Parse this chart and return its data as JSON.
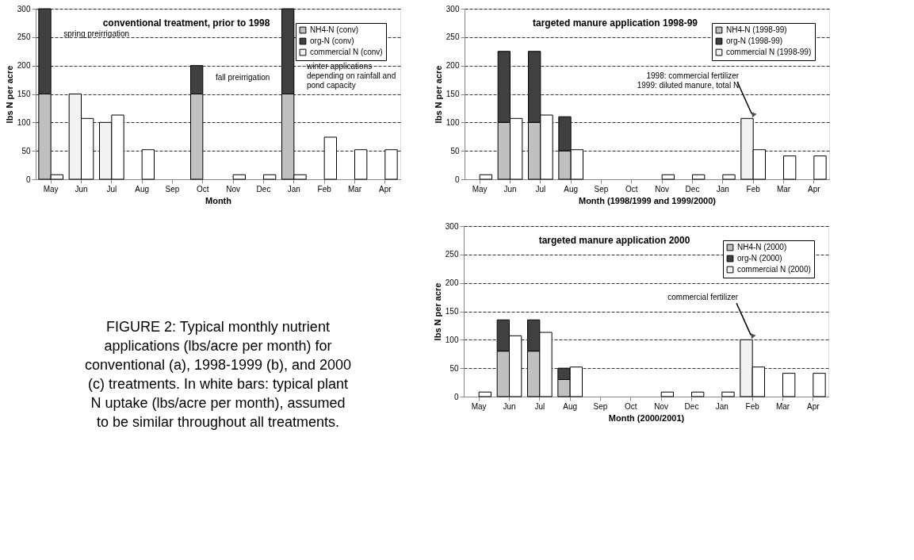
{
  "chart_data": [
    {
      "type": "bar",
      "title": "conventional treatment, prior to 1998",
      "xlabel": "Month",
      "ylabel": "lbs N per acre",
      "categories": [
        "May",
        "Jun",
        "Jul",
        "Aug",
        "Sep",
        "Oct",
        "Nov",
        "Dec",
        "Jan",
        "Feb",
        "Mar",
        "Apr"
      ],
      "ylim": [
        0,
        300
      ],
      "yticks": [
        0,
        50,
        100,
        150,
        200,
        250,
        300
      ],
      "grid": "y",
      "legend": "top right",
      "series": [
        {
          "name": "NH4-N (conv)",
          "color": "#c0c0c0",
          "values": [
            150,
            null,
            null,
            null,
            null,
            150,
            null,
            null,
            150,
            null,
            null,
            null
          ]
        },
        {
          "name": "org-N (conv)",
          "color": "#404040",
          "values": [
            150,
            null,
            null,
            null,
            null,
            50,
            null,
            null,
            150,
            null,
            null,
            null
          ],
          "base": [
            150,
            null,
            null,
            null,
            null,
            150,
            null,
            null,
            150,
            null,
            null,
            null
          ]
        },
        {
          "name": "commercial N (conv)",
          "color": "#f2f2f2",
          "values": [
            null,
            150,
            100,
            null,
            null,
            null,
            null,
            null,
            null,
            null,
            null,
            null
          ]
        },
        {
          "color": "#ffffff",
          "values": [
            8,
            107,
            113,
            52,
            null,
            null,
            8,
            8,
            8,
            74,
            52,
            52
          ]
        }
      ],
      "annotations": [
        {
          "text": "spring preirrigation",
          "x": "May",
          "y": 262
        },
        {
          "text": "fall preirrigation",
          "x": "Oct",
          "y": 185
        },
        {
          "text": "winter applications\ndepending on rainfall and\npond capacity",
          "x": "Jan",
          "y": 205
        }
      ]
    },
    {
      "type": "bar",
      "title": "targeted manure application 1998-99",
      "xlabel": "Month (1998/1999 and 1999/2000)",
      "ylabel": "lbs N per acre",
      "categories": [
        "May",
        "Jun",
        "Jul",
        "Aug",
        "Sep",
        "Oct",
        "Nov",
        "Dec",
        "Jan",
        "Feb",
        "Mar",
        "Apr"
      ],
      "ylim": [
        0,
        300
      ],
      "yticks": [
        0,
        50,
        100,
        150,
        200,
        250,
        300
      ],
      "grid": "y",
      "legend": "top right",
      "series": [
        {
          "name": "NH4-N (1998-99)",
          "color": "#c0c0c0",
          "values": [
            null,
            100,
            100,
            50,
            null,
            null,
            null,
            null,
            null,
            null,
            null,
            null
          ]
        },
        {
          "name": "org-N (1998-99)",
          "color": "#404040",
          "values": [
            null,
            125,
            125,
            60,
            null,
            null,
            null,
            null,
            null,
            null,
            null,
            null
          ],
          "base": [
            null,
            100,
            100,
            50,
            null,
            null,
            null,
            null,
            null,
            null,
            null,
            null
          ]
        },
        {
          "name": "commercial N (1998-99)",
          "color": "#f2f2f2",
          "values": [
            null,
            null,
            null,
            null,
            null,
            null,
            null,
            null,
            null,
            107,
            null,
            null
          ]
        },
        {
          "color": "#ffffff",
          "values": [
            8,
            107,
            113,
            52,
            null,
            null,
            8,
            8,
            8,
            52,
            41,
            41
          ]
        }
      ],
      "annotations": [
        {
          "text": "1998: commercial fertilizer\n1999: diluted manure, total N",
          "x": "Feb",
          "y": 107
        }
      ]
    },
    {
      "type": "other",
      "annotations": [
        "FIGURE 2:  Typical monthly nutrient\napplications (lbs/acre per month) for\nconventional (a), 1998-1999 (b), and 2000\n(c) treatments. In white bars: typical plant\nN uptake (lbs/acre per month), assumed\nto be similar throughout all treatments."
      ]
    },
    {
      "type": "bar",
      "title": "targeted manure application 2000",
      "xlabel": "Month (2000/2001)",
      "ylabel": "lbs N per acre",
      "categories": [
        "May",
        "Jun",
        "Jul",
        "Aug",
        "Sep",
        "Oct",
        "Nov",
        "Dec",
        "Jan",
        "Feb",
        "Mar",
        "Apr"
      ],
      "ylim": [
        0,
        300
      ],
      "yticks": [
        0,
        50,
        100,
        150,
        200,
        250,
        300
      ],
      "grid": "y",
      "legend": "top right",
      "series": [
        {
          "name": "NH4-N (2000)",
          "color": "#c0c0c0",
          "values": [
            null,
            80,
            80,
            30,
            null,
            null,
            null,
            null,
            null,
            null,
            null,
            null
          ]
        },
        {
          "name": "org-N (2000)",
          "color": "#404040",
          "values": [
            null,
            55,
            55,
            20,
            null,
            null,
            null,
            null,
            null,
            null,
            null,
            null
          ],
          "base": [
            null,
            80,
            80,
            30,
            null,
            null,
            null,
            null,
            null,
            null,
            null,
            null
          ]
        },
        {
          "name": "commercial N (2000)",
          "color": "#f2f2f2",
          "values": [
            null,
            null,
            null,
            null,
            null,
            null,
            null,
            null,
            null,
            100,
            null,
            null
          ]
        },
        {
          "color": "#ffffff",
          "values": [
            8,
            107,
            113,
            52,
            null,
            null,
            8,
            8,
            8,
            52,
            41,
            41
          ]
        }
      ],
      "annotations": [
        {
          "text": "commercial fertilizer",
          "x": "Feb",
          "y": 100
        }
      ]
    }
  ]
}
